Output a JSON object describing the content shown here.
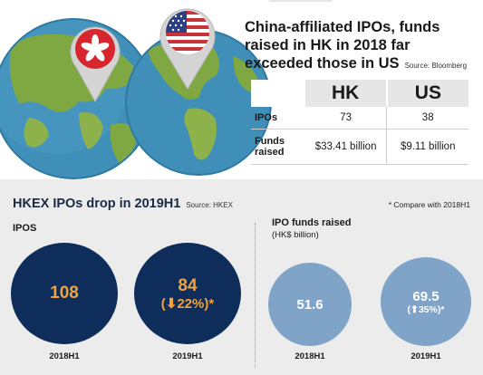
{
  "headline": {
    "title": "China-affiliated IPOs, funds raised in HK in 2018 far exceeded those in US",
    "source": "Source: Bloomberg"
  },
  "table": {
    "columns": [
      "HK",
      "US"
    ],
    "rows": [
      {
        "label": "IPOs",
        "hk": "73",
        "us": "38"
      },
      {
        "label": "Funds raised",
        "hk": "$33.41 billion",
        "us": "$9.11 billion"
      }
    ]
  },
  "section": {
    "title": "HKEX IPOs drop in 2019H1",
    "source": "Source: HKEX",
    "note": "* Compare with 2018H1"
  },
  "ipos": {
    "label": "IPOS",
    "items": [
      {
        "period": "2018H1",
        "value": "108",
        "change": ""
      },
      {
        "period": "2019H1",
        "value": "84",
        "change": "(⬇22%)*"
      }
    ]
  },
  "funds": {
    "label": "IPO funds raised",
    "unit": "(HK$ billion)",
    "items": [
      {
        "period": "2018H1",
        "value": "51.6",
        "change": ""
      },
      {
        "period": "2019H1",
        "value": "69.5",
        "change": "(⬆35%)*"
      }
    ]
  },
  "colors": {
    "navy": "#0e2d5a",
    "steel_blue": "#7fa4c8",
    "orange": "#f2a33a",
    "ocean": "#3f8fb8",
    "land": "#7fa843",
    "hk_red": "#d7262e",
    "us_red": "#c8323b",
    "us_blue": "#2b3f86"
  },
  "icons": [
    "globe-asia-icon",
    "globe-americas-icon",
    "hong-kong-flag-pin-icon",
    "us-flag-pin-icon"
  ]
}
